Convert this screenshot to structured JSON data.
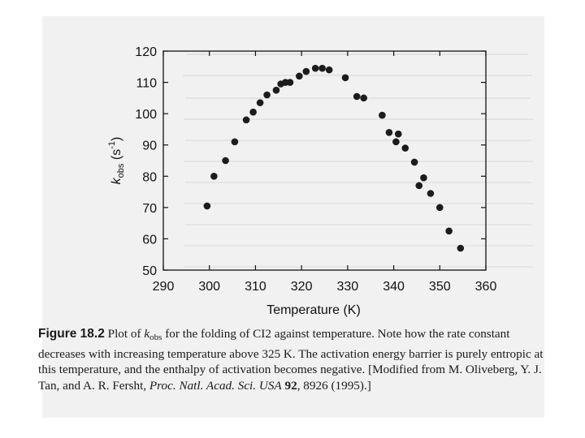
{
  "chart_data": {
    "type": "scatter",
    "title": "",
    "xlabel": "Temperature (K)",
    "ylabel": "k_obs (s^-1)",
    "ylabel_parts": {
      "k": "k",
      "sub": "obs",
      "units": " (s",
      "sup": "-1",
      "close": ")"
    },
    "xlim": [
      290,
      360
    ],
    "ylim": [
      50,
      120
    ],
    "xticks": [
      290,
      300,
      310,
      320,
      330,
      340,
      350,
      360
    ],
    "yticks": [
      50,
      60,
      70,
      80,
      90,
      100,
      110,
      120
    ],
    "grid": false,
    "legend": "none",
    "marker_color": "#1c1c1c",
    "points": [
      {
        "x": 299.5,
        "y": 70.5
      },
      {
        "x": 301.0,
        "y": 80.0
      },
      {
        "x": 303.5,
        "y": 85.0
      },
      {
        "x": 305.5,
        "y": 91.0
      },
      {
        "x": 308.0,
        "y": 98.0
      },
      {
        "x": 309.5,
        "y": 100.5
      },
      {
        "x": 311.0,
        "y": 103.5
      },
      {
        "x": 312.5,
        "y": 106.0
      },
      {
        "x": 314.5,
        "y": 107.5
      },
      {
        "x": 315.5,
        "y": 109.5
      },
      {
        "x": 316.5,
        "y": 110.0
      },
      {
        "x": 317.5,
        "y": 110.0
      },
      {
        "x": 319.5,
        "y": 112.0
      },
      {
        "x": 321.0,
        "y": 113.5
      },
      {
        "x": 323.0,
        "y": 114.5
      },
      {
        "x": 324.5,
        "y": 114.5
      },
      {
        "x": 326.0,
        "y": 114.0
      },
      {
        "x": 329.5,
        "y": 111.5
      },
      {
        "x": 332.0,
        "y": 105.5
      },
      {
        "x": 333.5,
        "y": 105.0
      },
      {
        "x": 337.5,
        "y": 99.5
      },
      {
        "x": 339.0,
        "y": 94.0
      },
      {
        "x": 340.5,
        "y": 91.0
      },
      {
        "x": 341.0,
        "y": 93.5
      },
      {
        "x": 342.5,
        "y": 89.0
      },
      {
        "x": 344.5,
        "y": 84.5
      },
      {
        "x": 345.5,
        "y": 77.0
      },
      {
        "x": 346.5,
        "y": 79.5
      },
      {
        "x": 348.0,
        "y": 74.5
      },
      {
        "x": 350.0,
        "y": 70.0
      },
      {
        "x": 352.0,
        "y": 62.5
      },
      {
        "x": 354.5,
        "y": 57.0
      }
    ]
  },
  "caption": {
    "figure_label": "Figure 18.2",
    "t1": " Plot of ",
    "k_italic": "k",
    "k_sub": "obs",
    "t2": " for the folding of CI2 against temperature. Note how the rate constant decreases with increasing temperature above 325 K. The activation energy barrier is purely entropic at this temperature, and the enthalpy of activation becomes negative. [Modified from M. Oliveberg, Y. J. Tan, and A. R. Fersht, ",
    "journal": "Proc. Natl. Acad. Sci. USA",
    "volume": "92",
    "t3": ", 8926 (1995).]"
  }
}
